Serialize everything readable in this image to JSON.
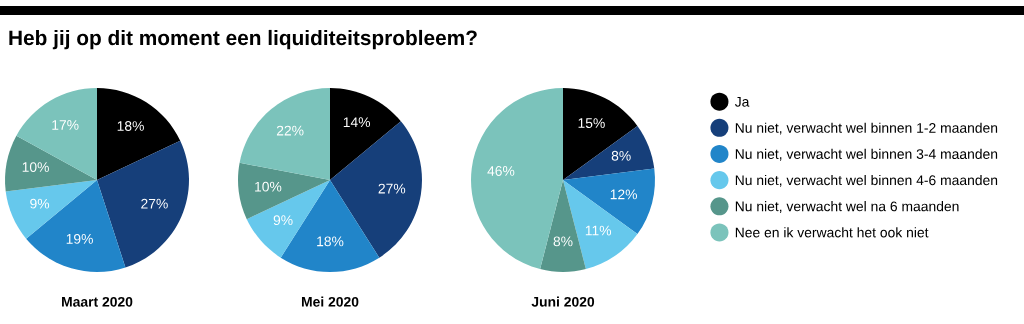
{
  "chart_data": {
    "type": "pie",
    "title": "Heb jij op dit moment een liquiditeitsprobleem?",
    "legend": "right",
    "categories": [
      "Ja",
      "Nu niet, verwacht wel binnen 1-2 maanden",
      "Nu niet, verwacht wel binnen 3-4 maanden",
      "Nu niet, verwacht wel binnen 4-6 maanden",
      "Nu niet, verwacht wel na 6 maanden",
      "Nee en ik verwacht het ook niet"
    ],
    "colors": [
      "#000000",
      "#163f7a",
      "#2185c9",
      "#66c8ec",
      "#56968b",
      "#7bc3bb"
    ],
    "series": [
      {
        "name": "Maart 2020",
        "values": [
          18,
          27,
          19,
          9,
          10,
          17
        ],
        "value_labels": [
          "18%",
          "27%",
          "19%",
          "9%",
          "10%",
          "17%"
        ]
      },
      {
        "name": "Mei 2020",
        "values": [
          14,
          27,
          18,
          9,
          10,
          22
        ],
        "value_labels": [
          "14%",
          "27%",
          "18%",
          "9%",
          "10%",
          "22%"
        ]
      },
      {
        "name": "Juni 2020",
        "values": [
          15,
          8,
          12,
          11,
          8,
          46
        ],
        "value_labels": [
          "15%",
          "8%",
          "12%",
          "11%",
          "8%",
          "46%"
        ]
      }
    ]
  }
}
